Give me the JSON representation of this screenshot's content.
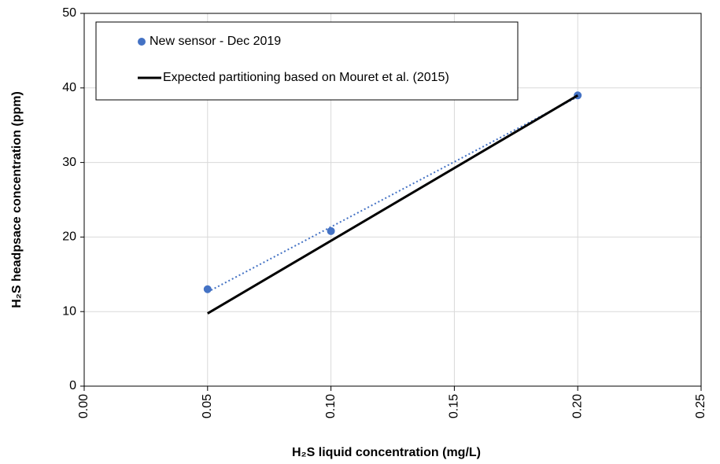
{
  "chart_data": {
    "type": "scatter",
    "xlabel": "H₂S liquid concentration (mg/L)",
    "ylabel": "H₂S headpsace concentration (ppm)",
    "series": [
      {
        "name": "New sensor - Dec 2019",
        "color": "#4472c4",
        "style": "markers",
        "trendline": true,
        "x": [
          0.05,
          0.1,
          0.2
        ],
        "values": [
          13,
          20.8,
          39
        ]
      },
      {
        "name": "Expected partitioning based on Mouret et al. (2015)",
        "color": "#000000",
        "style": "line",
        "x": [
          0.05,
          0.2
        ],
        "values": [
          9.75,
          39
        ]
      }
    ],
    "xlim": [
      0,
      0.25
    ],
    "xticks": [
      {
        "value": 0,
        "label": "0.00"
      },
      {
        "value": 0.05,
        "label": "0.05"
      },
      {
        "value": 0.1,
        "label": "0.10"
      },
      {
        "value": 0.15,
        "label": "0.15"
      },
      {
        "value": 0.2,
        "label": "0.20"
      },
      {
        "value": 0.25,
        "label": "0.25"
      }
    ],
    "ylim": [
      0,
      50
    ],
    "yticks": [
      0,
      10,
      20,
      30,
      40,
      50
    ],
    "grid": true,
    "legend": "upper left"
  }
}
